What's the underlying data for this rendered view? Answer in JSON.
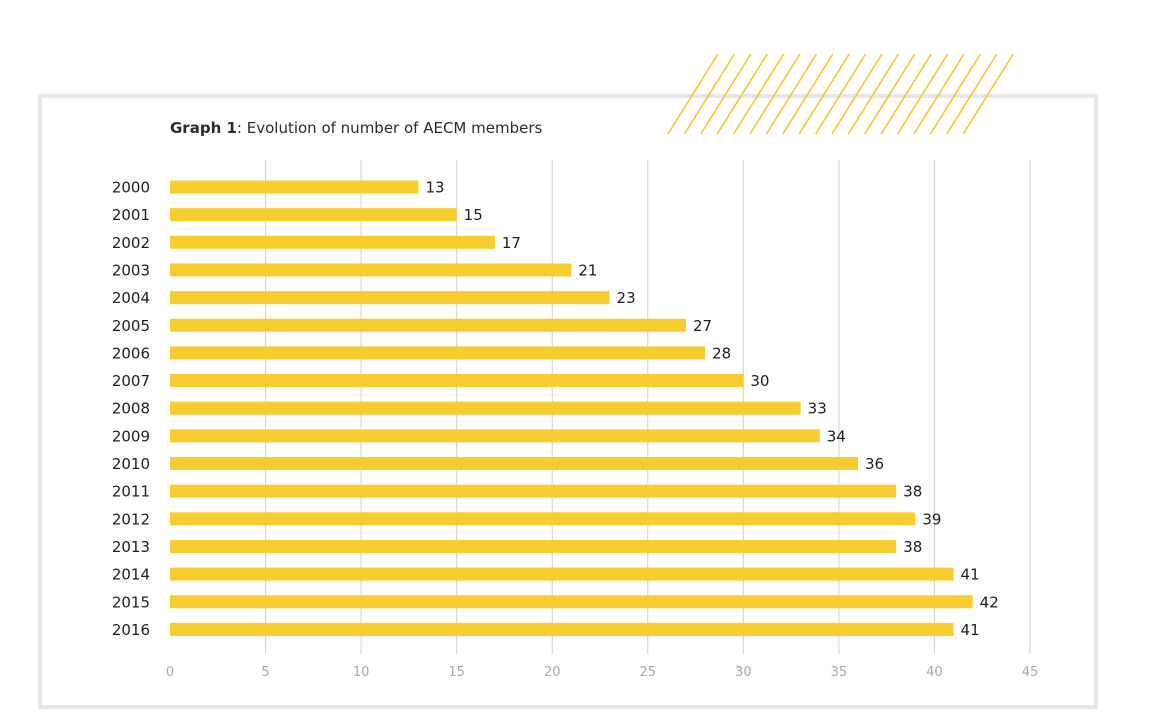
{
  "title": {
    "bold": "Graph 1",
    "rest": ": Evolution of number of AECM members"
  },
  "colors": {
    "bar": "#f7cc2f",
    "frame": "#e6e6e6",
    "hatch": "#f2c82e",
    "grid": "#cfcfcf"
  },
  "chart_data": {
    "type": "bar",
    "orientation": "horizontal",
    "title": "Graph 1: Evolution of number of AECM members",
    "categories": [
      "2000",
      "2001",
      "2002",
      "2003",
      "2004",
      "2005",
      "2006",
      "2007",
      "2008",
      "2009",
      "2010",
      "2011",
      "2012",
      "2013",
      "2014",
      "2015",
      "2016"
    ],
    "values": [
      13,
      15,
      17,
      21,
      23,
      27,
      28,
      30,
      33,
      34,
      36,
      38,
      39,
      38,
      41,
      42,
      41
    ],
    "xticks": [
      0,
      5,
      10,
      15,
      20,
      25,
      30,
      35,
      40,
      45
    ],
    "xlim": [
      0,
      45
    ],
    "grid": true,
    "data_labels": true
  }
}
